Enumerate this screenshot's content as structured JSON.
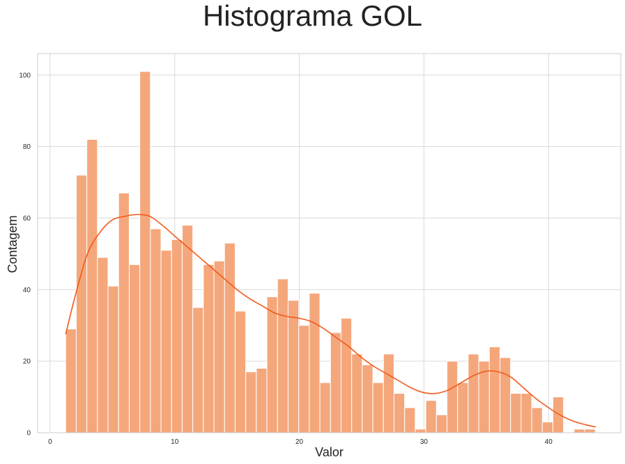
{
  "chart_data": {
    "type": "bar",
    "title": "Histograma GOL",
    "xlabel": "Valor",
    "ylabel": "Contagem",
    "xlim": [
      -1,
      45.8
    ],
    "ylim": [
      0,
      106
    ],
    "xticks": [
      "0",
      "10",
      "20",
      "30",
      "40"
    ],
    "yticks": [
      "0",
      "20",
      "40",
      "60",
      "80",
      "100"
    ],
    "grid": true,
    "bar_color": "#F5A77C",
    "kde_color": "#F05A1A",
    "bin_width": 0.85,
    "bin_start": 1.25,
    "counts": [
      29,
      72,
      82,
      49,
      41,
      67,
      47,
      101,
      57,
      51,
      54,
      58,
      35,
      47,
      48,
      53,
      34,
      17,
      18,
      38,
      43,
      37,
      30,
      39,
      14,
      28,
      32,
      22,
      19,
      14,
      22,
      11,
      7,
      1,
      9,
      5,
      20,
      14,
      22,
      20,
      24,
      21,
      11,
      11,
      7,
      3,
      10,
      0,
      1,
      1
    ],
    "kde_curve": {
      "x": [
        1.25,
        2,
        3,
        4,
        5,
        6,
        7,
        8,
        9,
        10,
        11,
        12,
        13,
        14,
        15,
        16,
        17,
        18,
        19,
        20,
        21,
        22,
        23,
        24,
        25,
        26,
        27,
        28,
        29,
        30,
        31,
        32,
        33,
        34,
        35,
        36,
        37,
        38,
        39,
        40,
        41,
        42,
        43,
        43.8
      ],
      "y": [
        27.5,
        38,
        50,
        56,
        59.5,
        60.5,
        61,
        60.5,
        58,
        55,
        52,
        49,
        46,
        43,
        40,
        37.5,
        35.5,
        33.5,
        32.5,
        32,
        31,
        29,
        26.5,
        24,
        21,
        18.5,
        16.5,
        14.5,
        12.5,
        11.2,
        11,
        12,
        14,
        16,
        17.2,
        17,
        15.5,
        12.5,
        9.5,
        7,
        4.8,
        3.2,
        2.2,
        1.6
      ]
    }
  }
}
